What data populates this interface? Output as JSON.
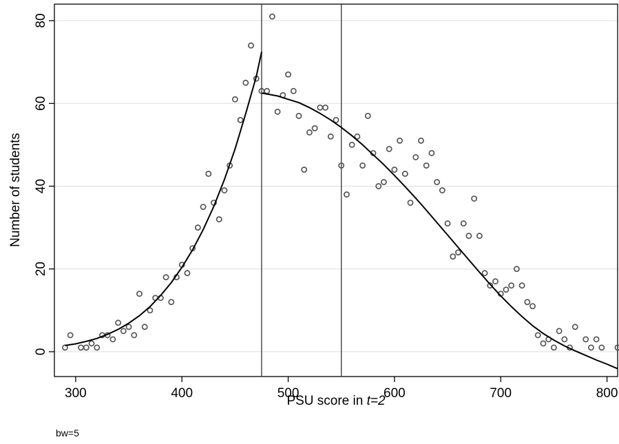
{
  "chart_data": {
    "type": "scatter",
    "title": "",
    "xlabel": "PSU score in ",
    "xlabel_italic": "t=2",
    "ylabel": "Number of students",
    "note": "bw=5",
    "xlim": [
      280,
      810
    ],
    "ylim": [
      -6,
      84
    ],
    "xticks": [
      "300",
      "400",
      "500",
      "600",
      "700",
      "800"
    ],
    "yticks": [
      "0",
      "20",
      "40",
      "60",
      "80"
    ],
    "xtick_values": [
      300,
      400,
      500,
      600,
      700,
      800
    ],
    "ytick_values": [
      0,
      20,
      40,
      60,
      80
    ],
    "grid": "horizontal",
    "cutoff_lines": [
      475,
      550
    ],
    "colors": {
      "points": "#555555",
      "fit": "#000000",
      "grid": "#dddddd",
      "cutoff": "#333333"
    },
    "points": [
      [
        290,
        1
      ],
      [
        295,
        4
      ],
      [
        305,
        1
      ],
      [
        310,
        1
      ],
      [
        315,
        2
      ],
      [
        320,
        1
      ],
      [
        325,
        4
      ],
      [
        330,
        4
      ],
      [
        335,
        3
      ],
      [
        340,
        7
      ],
      [
        345,
        5
      ],
      [
        350,
        6
      ],
      [
        355,
        4
      ],
      [
        360,
        14
      ],
      [
        365,
        6
      ],
      [
        370,
        10
      ],
      [
        375,
        13
      ],
      [
        380,
        13
      ],
      [
        385,
        18
      ],
      [
        390,
        12
      ],
      [
        395,
        18
      ],
      [
        400,
        21
      ],
      [
        405,
        19
      ],
      [
        410,
        25
      ],
      [
        415,
        30
      ],
      [
        420,
        35
      ],
      [
        425,
        43
      ],
      [
        430,
        36
      ],
      [
        435,
        32
      ],
      [
        440,
        39
      ],
      [
        445,
        45
      ],
      [
        450,
        61
      ],
      [
        455,
        56
      ],
      [
        460,
        65
      ],
      [
        465,
        74
      ],
      [
        470,
        66
      ],
      [
        475,
        63
      ],
      [
        480,
        63
      ],
      [
        485,
        81
      ],
      [
        490,
        58
      ],
      [
        495,
        62
      ],
      [
        500,
        67
      ],
      [
        505,
        63
      ],
      [
        510,
        57
      ],
      [
        515,
        44
      ],
      [
        520,
        53
      ],
      [
        525,
        54
      ],
      [
        530,
        59
      ],
      [
        535,
        59
      ],
      [
        540,
        52
      ],
      [
        545,
        56
      ],
      [
        550,
        45
      ],
      [
        555,
        38
      ],
      [
        560,
        50
      ],
      [
        565,
        52
      ],
      [
        570,
        45
      ],
      [
        575,
        57
      ],
      [
        580,
        48
      ],
      [
        585,
        40
      ],
      [
        590,
        41
      ],
      [
        595,
        49
      ],
      [
        600,
        44
      ],
      [
        605,
        51
      ],
      [
        610,
        43
      ],
      [
        615,
        36
      ],
      [
        620,
        47
      ],
      [
        625,
        51
      ],
      [
        630,
        45
      ],
      [
        635,
        48
      ],
      [
        640,
        41
      ],
      [
        645,
        39
      ],
      [
        650,
        31
      ],
      [
        655,
        23
      ],
      [
        660,
        24
      ],
      [
        665,
        31
      ],
      [
        670,
        28
      ],
      [
        675,
        37
      ],
      [
        680,
        28
      ],
      [
        685,
        19
      ],
      [
        690,
        16
      ],
      [
        695,
        17
      ],
      [
        700,
        14
      ],
      [
        705,
        15
      ],
      [
        710,
        16
      ],
      [
        715,
        20
      ],
      [
        720,
        16
      ],
      [
        725,
        12
      ],
      [
        730,
        11
      ],
      [
        735,
        4
      ],
      [
        740,
        2
      ],
      [
        745,
        3
      ],
      [
        750,
        1
      ],
      [
        755,
        5
      ],
      [
        760,
        3
      ],
      [
        765,
        1
      ],
      [
        770,
        6
      ],
      [
        780,
        3
      ],
      [
        785,
        1
      ],
      [
        790,
        3
      ],
      [
        795,
        1
      ],
      [
        810,
        1
      ]
    ],
    "fit_left": [
      [
        290,
        1.5
      ],
      [
        300,
        1.9
      ],
      [
        310,
        2.5
      ],
      [
        320,
        3.2
      ],
      [
        330,
        4.2
      ],
      [
        340,
        5.4
      ],
      [
        350,
        6.9
      ],
      [
        360,
        8.7
      ],
      [
        370,
        10.9
      ],
      [
        380,
        13.6
      ],
      [
        390,
        16.7
      ],
      [
        400,
        20.4
      ],
      [
        410,
        24.6
      ],
      [
        420,
        29.5
      ],
      [
        430,
        35.1
      ],
      [
        440,
        41.6
      ],
      [
        450,
        49.0
      ],
      [
        460,
        57.5
      ],
      [
        470,
        66.5
      ],
      [
        475,
        72.5
      ]
    ],
    "fit_right": [
      [
        475,
        62.5
      ],
      [
        490,
        61.8
      ],
      [
        500,
        61.0
      ],
      [
        510,
        60.2
      ],
      [
        520,
        59.0
      ],
      [
        530,
        57.6
      ],
      [
        540,
        56.0
      ],
      [
        550,
        54.2
      ],
      [
        560,
        52.2
      ],
      [
        570,
        50.0
      ],
      [
        580,
        47.6
      ],
      [
        590,
        45.2
      ],
      [
        600,
        42.6
      ],
      [
        610,
        39.9
      ],
      [
        620,
        37.1
      ],
      [
        630,
        34.2
      ],
      [
        640,
        31.2
      ],
      [
        650,
        28.2
      ],
      [
        660,
        25.2
      ],
      [
        670,
        22.2
      ],
      [
        680,
        19.2
      ],
      [
        690,
        16.3
      ],
      [
        700,
        13.5
      ],
      [
        710,
        10.9
      ],
      [
        720,
        8.5
      ],
      [
        730,
        6.3
      ],
      [
        740,
        4.4
      ],
      [
        750,
        2.8
      ],
      [
        760,
        1.4
      ],
      [
        770,
        0.2
      ],
      [
        780,
        -0.9
      ],
      [
        790,
        -2.0
      ],
      [
        800,
        -3.0
      ],
      [
        810,
        -4.1
      ]
    ]
  }
}
